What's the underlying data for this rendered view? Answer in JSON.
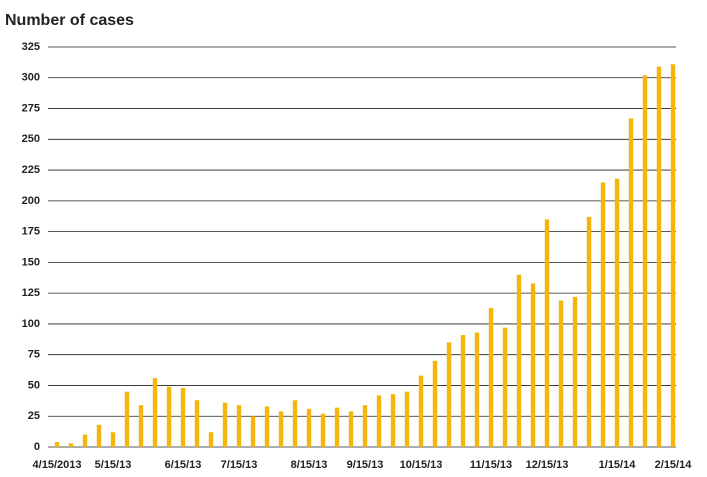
{
  "chart_data": {
    "type": "bar",
    "title": "Number of cases",
    "categories": [
      "4/15/2013",
      null,
      null,
      null,
      "5/15/13",
      null,
      null,
      null,
      null,
      "6/15/13",
      null,
      null,
      null,
      "7/15/13",
      null,
      null,
      null,
      null,
      "8/15/13",
      null,
      null,
      null,
      "9/15/13",
      null,
      null,
      null,
      "10/15/13",
      null,
      null,
      null,
      null,
      "11/15/13",
      null,
      null,
      null,
      "12/15/13",
      null,
      null,
      null,
      null,
      "1/15/14",
      null,
      null,
      null,
      "2/15/14"
    ],
    "values": [
      4,
      3,
      10,
      18,
      12,
      45,
      34,
      56,
      49,
      48,
      38,
      12,
      36,
      34,
      25,
      33,
      29,
      38,
      31,
      27,
      32,
      29,
      34,
      42,
      43,
      45,
      58,
      70,
      85,
      91,
      93,
      113,
      97,
      140,
      133,
      185,
      119,
      122,
      187,
      215,
      218,
      267,
      302,
      309,
      311
    ],
    "color": "#f5b50a",
    "ylim": [
      0,
      325
    ],
    "yticks": [
      0,
      25,
      50,
      75,
      100,
      125,
      150,
      175,
      200,
      225,
      250,
      275,
      300,
      325
    ],
    "grid": true
  }
}
